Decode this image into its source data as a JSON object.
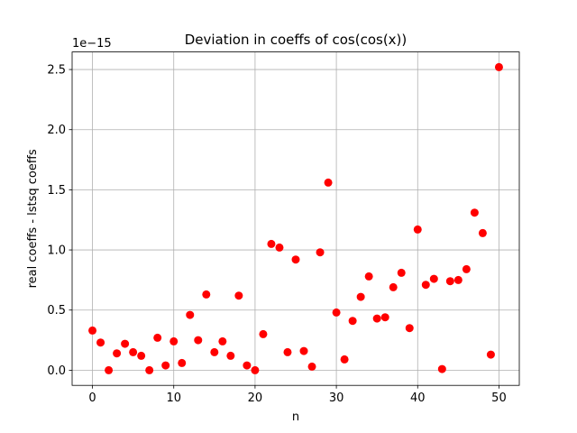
{
  "chart_data": {
    "type": "scatter",
    "title": "Deviation in coeffs of cos(cos(x))",
    "xlabel": "n",
    "ylabel": "real coeffs - lstsq coeffs",
    "y_offset_text": "1e−15",
    "xlim": [
      -2.5,
      52.5
    ],
    "ylim": [
      -0.126,
      2.646
    ],
    "x_ticks": [
      0,
      10,
      20,
      30,
      40,
      50
    ],
    "y_ticks": [
      0.0,
      0.5,
      1.0,
      1.5,
      2.0,
      2.5
    ],
    "y_tick_labels": [
      "0.0",
      "0.5",
      "1.0",
      "1.5",
      "2.0",
      "2.5"
    ],
    "grid": true,
    "marker_color": "#ff0000",
    "series": [
      {
        "x": [
          0,
          1,
          2,
          3,
          4,
          5,
          6,
          7,
          8,
          9,
          10,
          11,
          12,
          13,
          14,
          15,
          16,
          17,
          18,
          19,
          20,
          21,
          22,
          23,
          24,
          25,
          26,
          27,
          28,
          29,
          30,
          31,
          32,
          33,
          34,
          35,
          36,
          37,
          38,
          39,
          40,
          41,
          42,
          43,
          44,
          45,
          46,
          47,
          48,
          49,
          50
        ],
        "y": [
          0.33,
          0.23,
          0.0,
          0.14,
          0.22,
          0.15,
          0.12,
          0.0,
          0.27,
          0.04,
          0.24,
          0.06,
          0.46,
          0.25,
          0.63,
          0.15,
          0.24,
          0.12,
          0.62,
          0.04,
          0.0,
          0.3,
          1.05,
          1.02,
          0.15,
          0.92,
          0.16,
          0.03,
          0.98,
          1.56,
          0.48,
          0.09,
          0.41,
          0.61,
          0.78,
          0.43,
          0.44,
          0.69,
          0.81,
          0.35,
          1.17,
          0.71,
          0.76,
          0.01,
          0.74,
          0.75,
          0.84,
          1.31,
          1.14,
          0.13,
          2.52
        ]
      }
    ]
  }
}
